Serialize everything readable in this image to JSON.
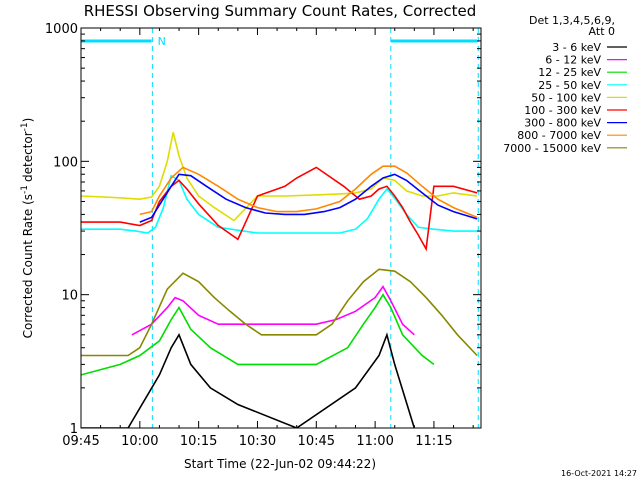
{
  "chart_data": {
    "type": "line",
    "title": "RHESSI Observing Summary Count Rates, Corrected",
    "xlabel": "Start Time (22-Jun-02 09:44:22)",
    "ylabel": "Corrected Count Rate (s",
    "ylabel_units_detector": "detector",
    "ylabel_exponent": "-1",
    "ylabel_tail": ")",
    "y_scale": "log",
    "ylim": [
      1,
      1000
    ],
    "x_minutes_range": [
      0,
      102
    ],
    "x_ticks": [
      {
        "label": "09:45",
        "m": 0
      },
      {
        "label": "10:00",
        "m": 15
      },
      {
        "label": "10:15",
        "m": 30
      },
      {
        "label": "10:30",
        "m": 45
      },
      {
        "label": "10:45",
        "m": 60
      },
      {
        "label": "11:00",
        "m": 75
      },
      {
        "label": "11:15",
        "m": 90
      }
    ],
    "y_ticks": [
      {
        "label": "1",
        "v": 1
      },
      {
        "label": "10",
        "v": 10
      },
      {
        "label": "100",
        "v": 100
      },
      {
        "label": "1000",
        "v": 1000
      }
    ],
    "legend_header": [
      "Det 1,3,4,5,6,9,",
      "Att 0"
    ],
    "legend_position": "right",
    "night_marker_label": "N",
    "night_bars": [
      [
        0,
        18
      ],
      [
        79,
        101
      ]
    ],
    "boundary_lines_cyan": [
      18.2,
      79,
      101.3
    ],
    "timestamp": "16-Oct-2021 14:27",
    "series": [
      {
        "name": "3 - 6 keV",
        "color": "#000000",
        "x": [
          0,
          12,
          20,
          23,
          25,
          28,
          33,
          40,
          55,
          70,
          76,
          78,
          80,
          85
        ],
        "y": [
          1,
          1,
          2.5,
          4,
          5,
          3,
          2,
          1.5,
          1,
          2,
          3.5,
          5,
          3,
          1
        ]
      },
      {
        "name": "6 - 12 keV",
        "color": "#ff00ff",
        "x": [
          13,
          18,
          22,
          24,
          26,
          30,
          35,
          40,
          60,
          65,
          70,
          75,
          77,
          79,
          82,
          85
        ],
        "y": [
          5,
          6,
          8,
          9.5,
          9,
          7,
          6,
          6,
          6,
          6.5,
          7.5,
          9.5,
          11.5,
          9,
          6,
          5
        ]
      },
      {
        "name": "12 - 25 keV",
        "color": "#00dd00",
        "x": [
          0,
          10,
          15,
          20,
          23,
          25,
          28,
          33,
          40,
          60,
          68,
          72,
          75,
          77,
          79,
          82,
          87,
          90
        ],
        "y": [
          2.5,
          3,
          3.5,
          4.5,
          6.5,
          8,
          5.5,
          4,
          3,
          3,
          4,
          6,
          8,
          10,
          8,
          5,
          3.5,
          3
        ]
      },
      {
        "name": "25 - 50 keV",
        "color": "#00ffff",
        "x": [
          0,
          10,
          14,
          17,
          19,
          21,
          23,
          25,
          27,
          30,
          35,
          45,
          60,
          66,
          70,
          73,
          76,
          78,
          80,
          83,
          86,
          90,
          95,
          101
        ],
        "y": [
          31,
          31,
          30,
          29,
          32,
          45,
          78,
          72,
          52,
          40,
          32,
          29,
          29,
          29,
          31,
          37,
          52,
          62,
          53,
          40,
          32,
          31,
          30,
          30
        ]
      },
      {
        "name": "50 - 100 keV",
        "color": "#dddd00",
        "x": [
          0,
          6,
          11,
          15,
          18,
          20,
          22,
          23.5,
          25,
          27,
          30,
          34,
          39,
          45,
          52,
          60,
          66,
          70,
          74,
          77,
          80,
          83,
          87,
          91,
          95,
          101
        ],
        "y": [
          55,
          54,
          53,
          52,
          54,
          65,
          100,
          165,
          110,
          75,
          55,
          45,
          36,
          55,
          55,
          56,
          57,
          58,
          62,
          75,
          72,
          60,
          55,
          55,
          58,
          55
        ]
      },
      {
        "name": "100 - 300 keV",
        "color": "#ff0000",
        "x": [
          0,
          10,
          15,
          18,
          20,
          23,
          25,
          27,
          30,
          35,
          40,
          45,
          52,
          55,
          60,
          67,
          71,
          74,
          76,
          78,
          80,
          82,
          84,
          86,
          88,
          90,
          95,
          101
        ],
        "y": [
          35,
          35,
          33,
          36,
          50,
          65,
          72,
          62,
          48,
          33,
          26,
          55,
          65,
          75,
          90,
          65,
          52,
          55,
          62,
          65,
          55,
          45,
          35,
          28,
          22,
          65,
          65,
          58
        ]
      },
      {
        "name": "300 - 800 keV",
        "color": "#0000ff",
        "x": [
          15,
          18,
          20,
          23,
          25,
          28,
          32,
          37,
          42,
          47,
          52,
          57,
          62,
          66,
          70,
          74,
          77,
          80,
          83,
          87,
          91,
          95,
          101
        ],
        "y": [
          35,
          38,
          47,
          65,
          80,
          78,
          65,
          52,
          45,
          41,
          40,
          40,
          42,
          45,
          52,
          65,
          75,
          80,
          72,
          58,
          47,
          42,
          37
        ]
      },
      {
        "name": "800 - 7000 keV",
        "color": "#ff8800",
        "x": [
          15,
          18,
          20,
          23,
          26,
          30,
          35,
          40,
          45,
          50,
          55,
          60,
          66,
          70,
          74,
          77,
          80,
          83,
          87,
          91,
          95,
          101
        ],
        "y": [
          40,
          42,
          55,
          75,
          90,
          80,
          65,
          52,
          45,
          42,
          42,
          44,
          50,
          62,
          80,
          92,
          92,
          82,
          65,
          52,
          45,
          38
        ]
      },
      {
        "name": "7000 - 15000 keV",
        "color": "#888800",
        "x": [
          0,
          12,
          15,
          18,
          22,
          26,
          30,
          34,
          38,
          42,
          46,
          60,
          64,
          68,
          72,
          76,
          80,
          84,
          88,
          92,
          96,
          101
        ],
        "y": [
          3.5,
          3.5,
          4,
          6,
          11,
          14.5,
          12.5,
          9.5,
          7.5,
          6,
          5,
          5,
          6,
          9,
          12.5,
          15.5,
          15,
          12.5,
          9.5,
          7,
          5,
          3.5
        ]
      }
    ]
  }
}
